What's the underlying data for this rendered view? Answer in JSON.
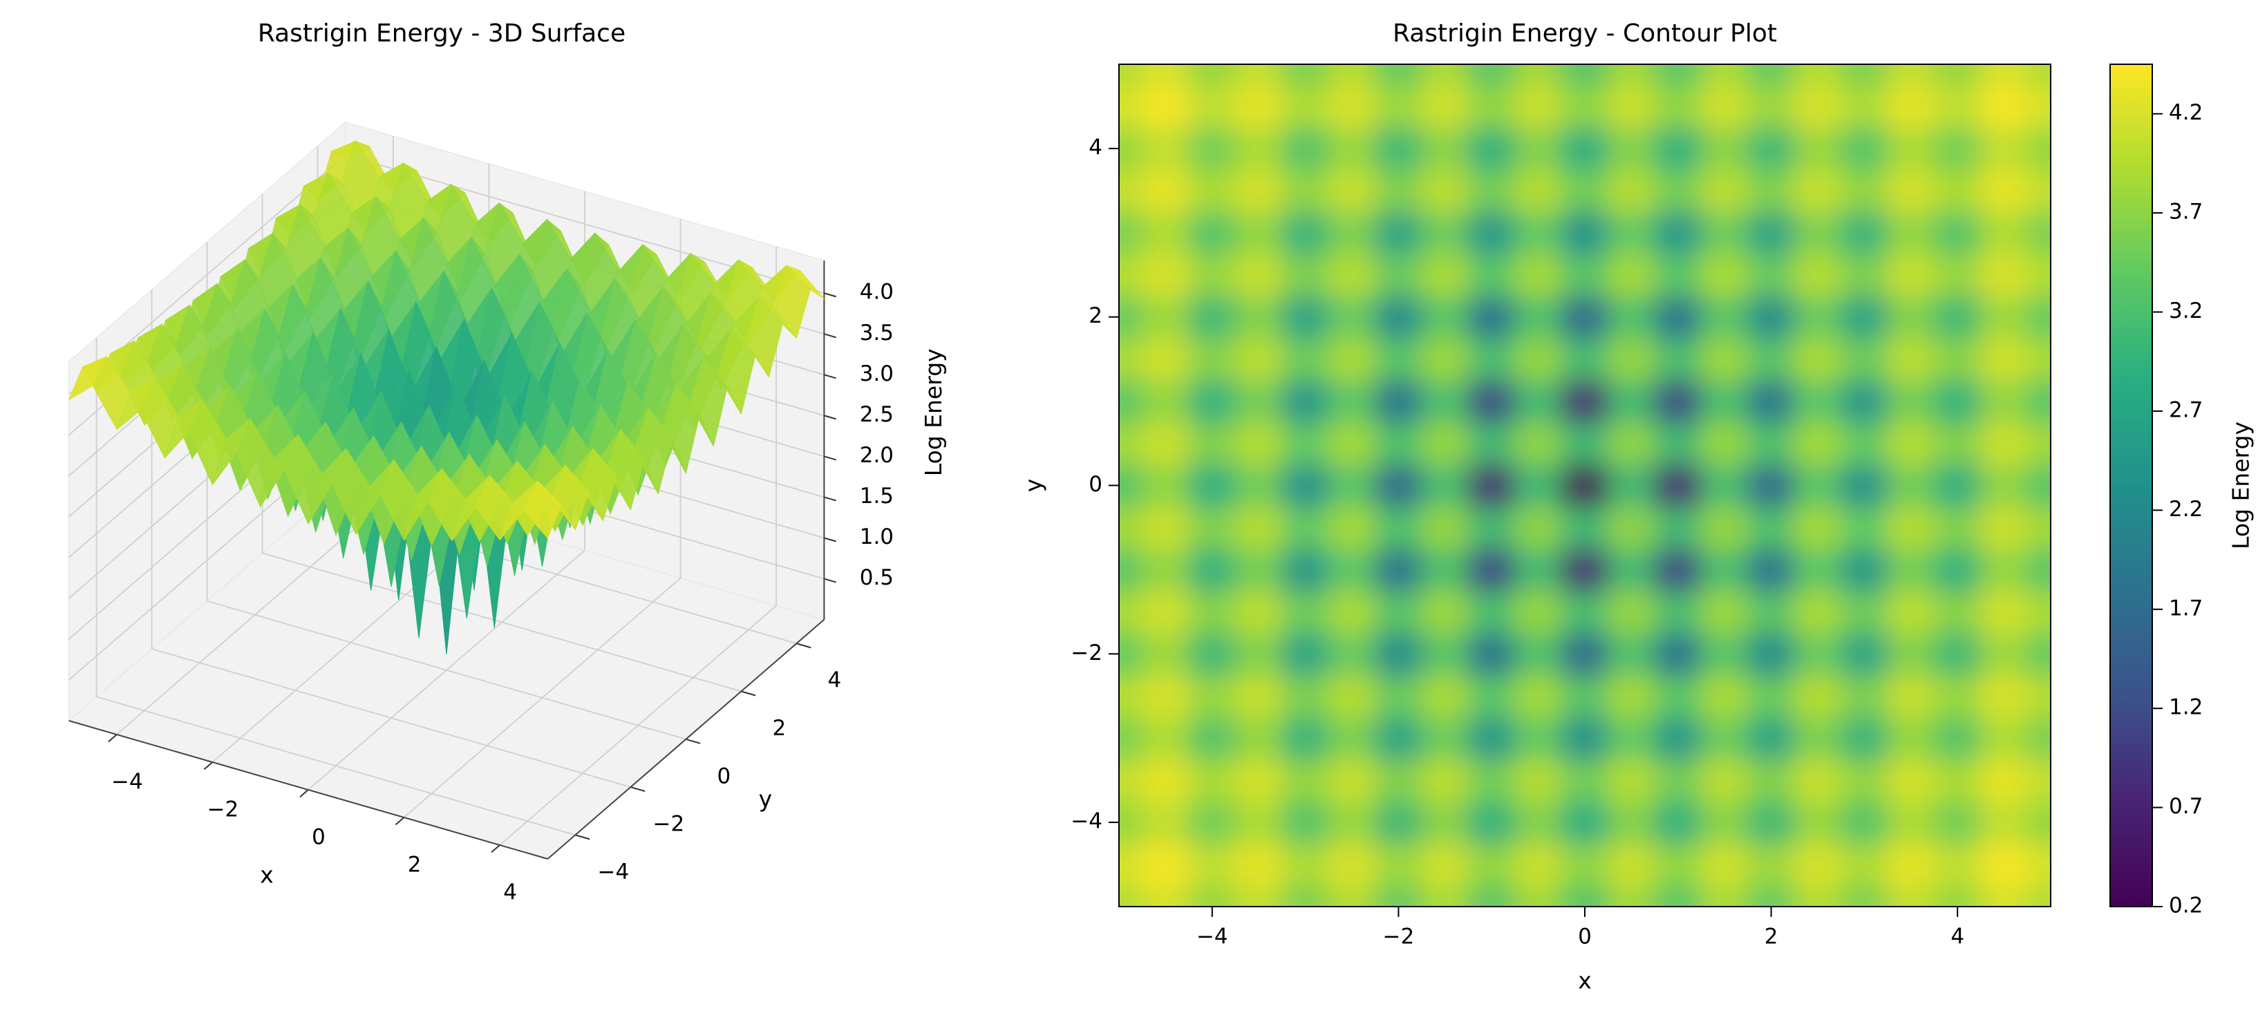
{
  "chart_data": [
    {
      "type": "surface",
      "title": "Rastrigin Energy - 3D Surface",
      "xlabel": "x",
      "ylabel": "y",
      "zlabel": "Log Energy",
      "cmap": "viridis",
      "xlim": [
        -5,
        5
      ],
      "ylim": [
        -5,
        5
      ],
      "zlim": [
        0,
        4.4
      ],
      "xticks": [
        {
          "value": -4,
          "label": "−4"
        },
        {
          "value": -2,
          "label": "−2"
        },
        0,
        2,
        4
      ],
      "yticks": [
        {
          "value": -4,
          "label": "−4"
        },
        {
          "value": -2,
          "label": "−2"
        },
        0,
        2,
        4
      ],
      "zticks": [
        0.5,
        {
          "value": 1,
          "label": "1.0"
        },
        1.5,
        {
          "value": 2,
          "label": "2.0"
        },
        2.5,
        {
          "value": 3,
          "label": "3.0"
        },
        3.5,
        {
          "value": 4,
          "label": "4.0"
        }
      ],
      "x": [
        -5,
        -4.5,
        -4,
        -3.5,
        -3,
        -2.5,
        -2,
        -1.5,
        -1,
        -0.5,
        0,
        0.5,
        1,
        1.5,
        2,
        2.5,
        3,
        3.5,
        4,
        4.5,
        5
      ],
      "y": [
        -5,
        -4.5,
        -4,
        -3.5,
        -3,
        -2.5,
        -2,
        -1.5,
        -1,
        -0.5,
        0,
        0.5,
        1,
        1.5,
        2,
        2.5,
        3,
        3.5,
        4,
        4.5,
        5
      ],
      "z": [
        [
          3.93,
          4.19,
          3.74,
          4.06,
          3.56,
          3.96,
          3.4,
          3.88,
          3.3,
          3.83,
          3.26,
          3.83,
          3.3,
          3.88,
          3.4,
          3.96,
          3.56,
          4.06,
          3.74,
          4.19,
          3.93
        ],
        [
          4.19,
          4.4,
          4.05,
          4.3,
          3.92,
          4.21,
          3.81,
          4.15,
          3.74,
          4.12,
          3.72,
          4.12,
          3.74,
          4.15,
          3.81,
          4.21,
          3.92,
          4.3,
          4.05,
          4.4,
          4.19
        ],
        [
          3.74,
          4.05,
          3.5,
          3.9,
          3.26,
          3.77,
          3.04,
          3.67,
          2.89,
          3.62,
          2.83,
          3.62,
          2.89,
          3.67,
          3.04,
          3.77,
          3.26,
          3.9,
          3.5,
          4.05,
          3.74
        ],
        [
          4.06,
          4.3,
          3.9,
          4.18,
          3.74,
          4.09,
          3.62,
          4.02,
          3.53,
          3.98,
          3.5,
          3.98,
          3.53,
          4.02,
          3.62,
          4.09,
          3.74,
          4.18,
          3.9,
          4.3,
          4.06
        ],
        [
          3.56,
          3.92,
          3.26,
          3.74,
          2.94,
          3.59,
          2.64,
          3.47,
          2.4,
          3.41,
          2.3,
          3.41,
          2.4,
          3.47,
          2.64,
          3.59,
          2.94,
          3.74,
          3.26,
          3.92,
          3.56
        ],
        [
          3.96,
          4.21,
          3.77,
          4.09,
          3.59,
          3.98,
          3.44,
          3.9,
          3.34,
          3.86,
          3.31,
          3.86,
          3.34,
          3.9,
          3.44,
          3.98,
          3.59,
          4.09,
          3.77,
          4.21,
          3.96
        ],
        [
          3.4,
          3.81,
          3.04,
          3.62,
          2.64,
          3.44,
          2.2,
          3.31,
          1.79,
          3.23,
          1.61,
          3.23,
          1.79,
          3.31,
          2.2,
          3.44,
          2.64,
          3.62,
          3.04,
          3.81,
          3.4
        ],
        [
          3.88,
          4.15,
          3.67,
          4.02,
          3.47,
          3.9,
          3.31,
          3.82,
          3.19,
          3.77,
          3.15,
          3.77,
          3.19,
          3.82,
          3.31,
          3.9,
          3.47,
          4.02,
          3.67,
          4.15,
          3.88
        ],
        [
          3.3,
          3.74,
          2.89,
          3.53,
          2.4,
          3.34,
          1.79,
          3.19,
          1.1,
          3.1,
          0.69,
          3.1,
          1.1,
          3.19,
          1.79,
          3.34,
          2.4,
          3.53,
          2.89,
          3.74,
          3.3
        ],
        [
          3.83,
          4.12,
          3.62,
          3.98,
          3.41,
          3.86,
          3.23,
          3.77,
          3.1,
          3.73,
          3.06,
          3.73,
          3.1,
          3.77,
          3.23,
          3.86,
          3.41,
          3.98,
          3.62,
          4.12,
          3.83
        ],
        [
          3.26,
          3.72,
          2.83,
          3.5,
          2.3,
          3.31,
          1.61,
          3.15,
          0.69,
          3.06,
          0.2,
          3.06,
          0.69,
          3.15,
          1.61,
          3.31,
          2.3,
          3.5,
          2.83,
          3.72,
          3.26
        ],
        [
          3.83,
          4.12,
          3.62,
          3.98,
          3.41,
          3.86,
          3.23,
          3.77,
          3.1,
          3.73,
          3.06,
          3.73,
          3.1,
          3.77,
          3.23,
          3.86,
          3.41,
          3.98,
          3.62,
          4.12,
          3.83
        ],
        [
          3.3,
          3.74,
          2.89,
          3.53,
          2.4,
          3.34,
          1.79,
          3.19,
          1.1,
          3.1,
          0.69,
          3.1,
          1.1,
          3.19,
          1.79,
          3.34,
          2.4,
          3.53,
          2.89,
          3.74,
          3.3
        ],
        [
          3.88,
          4.15,
          3.67,
          4.02,
          3.47,
          3.9,
          3.31,
          3.82,
          3.19,
          3.77,
          3.15,
          3.77,
          3.19,
          3.82,
          3.31,
          3.9,
          3.47,
          4.02,
          3.67,
          4.15,
          3.88
        ],
        [
          3.4,
          3.81,
          3.04,
          3.62,
          2.64,
          3.44,
          2.2,
          3.31,
          1.79,
          3.23,
          1.61,
          3.23,
          1.79,
          3.31,
          2.2,
          3.44,
          2.64,
          3.62,
          3.04,
          3.81,
          3.4
        ],
        [
          3.96,
          4.21,
          3.77,
          4.09,
          3.59,
          3.98,
          3.44,
          3.9,
          3.34,
          3.86,
          3.31,
          3.86,
          3.34,
          3.9,
          3.44,
          3.98,
          3.59,
          4.09,
          3.77,
          4.21,
          3.96
        ],
        [
          3.56,
          3.92,
          3.26,
          3.74,
          2.94,
          3.59,
          2.64,
          3.47,
          2.4,
          3.41,
          2.3,
          3.41,
          2.4,
          3.47,
          2.64,
          3.59,
          2.94,
          3.74,
          3.26,
          3.92,
          3.56
        ],
        [
          4.06,
          4.3,
          3.9,
          4.18,
          3.74,
          4.09,
          3.62,
          4.02,
          3.53,
          3.98,
          3.5,
          3.98,
          3.53,
          4.02,
          3.62,
          4.09,
          3.74,
          4.18,
          3.9,
          4.3,
          4.06
        ],
        [
          3.74,
          4.05,
          3.5,
          3.9,
          3.26,
          3.77,
          3.04,
          3.67,
          2.89,
          3.62,
          2.83,
          3.62,
          2.89,
          3.67,
          3.04,
          3.77,
          3.26,
          3.9,
          3.5,
          4.05,
          3.74
        ],
        [
          4.19,
          4.4,
          4.05,
          4.3,
          3.92,
          4.21,
          3.81,
          4.15,
          3.74,
          4.12,
          3.72,
          4.12,
          3.74,
          4.15,
          3.81,
          4.21,
          3.92,
          4.3,
          4.05,
          4.4,
          4.19
        ],
        [
          3.93,
          4.19,
          3.74,
          4.06,
          3.56,
          3.96,
          3.4,
          3.88,
          3.3,
          3.83,
          3.26,
          3.83,
          3.3,
          3.88,
          3.4,
          3.96,
          3.56,
          4.06,
          3.74,
          4.19,
          3.93
        ]
      ]
    },
    {
      "type": "contour",
      "title": "Rastrigin Energy - Contour Plot",
      "xlabel": "x",
      "ylabel": "y",
      "colorbar_label": "Log Energy",
      "cmap": "viridis",
      "xlim": [
        -5,
        5
      ],
      "ylim": [
        -5,
        5
      ],
      "clim": [
        0.2,
        4.45
      ],
      "xticks": [
        {
          "value": -4,
          "label": "−4"
        },
        {
          "value": -2,
          "label": "−2"
        },
        0,
        2,
        4
      ],
      "yticks": [
        {
          "value": -4,
          "label": "−4"
        },
        {
          "value": -2,
          "label": "−2"
        },
        0,
        2,
        4
      ],
      "cticks": [
        0.2,
        0.7,
        1.2,
        1.7,
        2.2,
        2.7,
        3.2,
        3.7,
        4.2
      ],
      "x": [
        -5,
        -4.5,
        -4,
        -3.5,
        -3,
        -2.5,
        -2,
        -1.5,
        -1,
        -0.5,
        0,
        0.5,
        1,
        1.5,
        2,
        2.5,
        3,
        3.5,
        4,
        4.5,
        5
      ],
      "y": [
        -5,
        -4.5,
        -4,
        -3.5,
        -3,
        -2.5,
        -2,
        -1.5,
        -1,
        -0.5,
        0,
        0.5,
        1,
        1.5,
        2,
        2.5,
        3,
        3.5,
        4,
        4.5,
        5
      ],
      "z": [
        [
          3.93,
          4.19,
          3.74,
          4.06,
          3.56,
          3.96,
          3.4,
          3.88,
          3.3,
          3.83,
          3.26,
          3.83,
          3.3,
          3.88,
          3.4,
          3.96,
          3.56,
          4.06,
          3.74,
          4.19,
          3.93
        ],
        [
          4.19,
          4.4,
          4.05,
          4.3,
          3.92,
          4.21,
          3.81,
          4.15,
          3.74,
          4.12,
          3.72,
          4.12,
          3.74,
          4.15,
          3.81,
          4.21,
          3.92,
          4.3,
          4.05,
          4.4,
          4.19
        ],
        [
          3.74,
          4.05,
          3.5,
          3.9,
          3.26,
          3.77,
          3.04,
          3.67,
          2.89,
          3.62,
          2.83,
          3.62,
          2.89,
          3.67,
          3.04,
          3.77,
          3.26,
          3.9,
          3.5,
          4.05,
          3.74
        ],
        [
          4.06,
          4.3,
          3.9,
          4.18,
          3.74,
          4.09,
          3.62,
          4.02,
          3.53,
          3.98,
          3.5,
          3.98,
          3.53,
          4.02,
          3.62,
          4.09,
          3.74,
          4.18,
          3.9,
          4.3,
          4.06
        ],
        [
          3.56,
          3.92,
          3.26,
          3.74,
          2.94,
          3.59,
          2.64,
          3.47,
          2.4,
          3.41,
          2.3,
          3.41,
          2.4,
          3.47,
          2.64,
          3.59,
          2.94,
          3.74,
          3.26,
          3.92,
          3.56
        ],
        [
          3.96,
          4.21,
          3.77,
          4.09,
          3.59,
          3.98,
          3.44,
          3.9,
          3.34,
          3.86,
          3.31,
          3.86,
          3.34,
          3.9,
          3.44,
          3.98,
          3.59,
          4.09,
          3.77,
          4.21,
          3.96
        ],
        [
          3.4,
          3.81,
          3.04,
          3.62,
          2.64,
          3.44,
          2.2,
          3.31,
          1.79,
          3.23,
          1.61,
          3.23,
          1.79,
          3.31,
          2.2,
          3.44,
          2.64,
          3.62,
          3.04,
          3.81,
          3.4
        ],
        [
          3.88,
          4.15,
          3.67,
          4.02,
          3.47,
          3.9,
          3.31,
          3.82,
          3.19,
          3.77,
          3.15,
          3.77,
          3.19,
          3.82,
          3.31,
          3.9,
          3.47,
          4.02,
          3.67,
          4.15,
          3.88
        ],
        [
          3.3,
          3.74,
          2.89,
          3.53,
          2.4,
          3.34,
          1.79,
          3.19,
          1.1,
          3.1,
          0.69,
          3.1,
          1.1,
          3.19,
          1.79,
          3.34,
          2.4,
          3.53,
          2.89,
          3.74,
          3.3
        ],
        [
          3.83,
          4.12,
          3.62,
          3.98,
          3.41,
          3.86,
          3.23,
          3.77,
          3.1,
          3.73,
          3.06,
          3.73,
          3.1,
          3.77,
          3.23,
          3.86,
          3.41,
          3.98,
          3.62,
          4.12,
          3.83
        ],
        [
          3.26,
          3.72,
          2.83,
          3.5,
          2.3,
          3.31,
          1.61,
          3.15,
          0.69,
          3.06,
          0.2,
          3.06,
          0.69,
          3.15,
          1.61,
          3.31,
          2.3,
          3.5,
          2.83,
          3.72,
          3.26
        ],
        [
          3.83,
          4.12,
          3.62,
          3.98,
          3.41,
          3.86,
          3.23,
          3.77,
          3.1,
          3.73,
          3.06,
          3.73,
          3.1,
          3.77,
          3.23,
          3.86,
          3.41,
          3.98,
          3.62,
          4.12,
          3.83
        ],
        [
          3.3,
          3.74,
          2.89,
          3.53,
          2.4,
          3.34,
          1.79,
          3.19,
          1.1,
          3.1,
          0.69,
          3.1,
          1.1,
          3.19,
          1.79,
          3.34,
          2.4,
          3.53,
          2.89,
          3.74,
          3.3
        ],
        [
          3.88,
          4.15,
          3.67,
          4.02,
          3.47,
          3.9,
          3.31,
          3.82,
          3.19,
          3.77,
          3.15,
          3.77,
          3.19,
          3.82,
          3.31,
          3.9,
          3.47,
          4.02,
          3.67,
          4.15,
          3.88
        ],
        [
          3.4,
          3.81,
          3.04,
          3.62,
          2.64,
          3.44,
          2.2,
          3.31,
          1.79,
          3.23,
          1.61,
          3.23,
          1.79,
          3.31,
          2.2,
          3.44,
          2.64,
          3.62,
          3.04,
          3.81,
          3.4
        ],
        [
          3.96,
          4.21,
          3.77,
          4.09,
          3.59,
          3.98,
          3.44,
          3.9,
          3.34,
          3.86,
          3.31,
          3.86,
          3.34,
          3.9,
          3.44,
          3.98,
          3.59,
          4.09,
          3.77,
          4.21,
          3.96
        ],
        [
          3.56,
          3.92,
          3.26,
          3.74,
          2.94,
          3.59,
          2.64,
          3.47,
          2.4,
          3.41,
          2.3,
          3.41,
          2.4,
          3.47,
          2.64,
          3.59,
          2.94,
          3.74,
          3.26,
          3.92,
          3.56
        ],
        [
          4.06,
          4.3,
          3.9,
          4.18,
          3.74,
          4.09,
          3.62,
          4.02,
          3.53,
          3.98,
          3.5,
          3.98,
          3.53,
          4.02,
          3.62,
          4.09,
          3.74,
          4.18,
          3.9,
          4.3,
          4.06
        ],
        [
          3.74,
          4.05,
          3.5,
          3.9,
          3.26,
          3.77,
          3.04,
          3.67,
          2.89,
          3.62,
          2.83,
          3.62,
          2.89,
          3.67,
          3.04,
          3.77,
          3.26,
          3.9,
          3.5,
          4.05,
          3.74
        ],
        [
          4.19,
          4.4,
          4.05,
          4.3,
          3.92,
          4.21,
          3.81,
          4.15,
          3.74,
          4.12,
          3.72,
          4.12,
          3.74,
          4.15,
          3.81,
          4.21,
          3.92,
          4.3,
          4.05,
          4.4,
          4.19
        ],
        [
          3.93,
          4.19,
          3.74,
          4.06,
          3.56,
          3.96,
          3.4,
          3.88,
          3.3,
          3.83,
          3.26,
          3.83,
          3.3,
          3.88,
          3.4,
          3.96,
          3.56,
          4.06,
          3.74,
          4.19,
          3.93
        ]
      ]
    }
  ]
}
